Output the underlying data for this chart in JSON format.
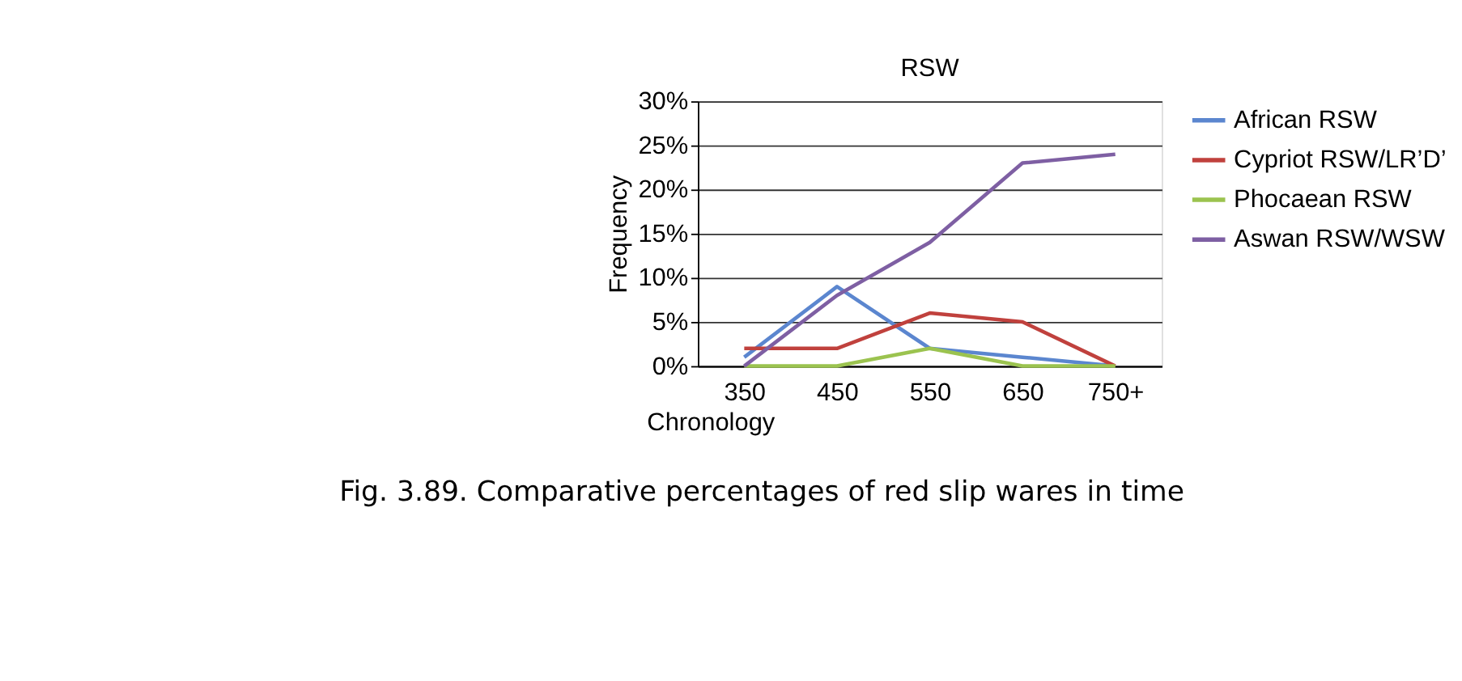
{
  "chart_data": {
    "type": "line",
    "title": "RSW",
    "xlabel": "Chronology",
    "ylabel": "Frequency",
    "categories": [
      "350",
      "450",
      "550",
      "650",
      "750+"
    ],
    "series": [
      {
        "name": "African RSW",
        "color": "#5b86cf",
        "values": [
          1,
          9,
          2,
          1,
          0
        ]
      },
      {
        "name": "Cypriot RSW/LR’D’",
        "color": "#c0413d",
        "values": [
          2,
          2,
          6,
          5,
          0
        ]
      },
      {
        "name": "Phocaean RSW",
        "color": "#9bc34f",
        "values": [
          0,
          0,
          2,
          0,
          0
        ]
      },
      {
        "name": "Aswan RSW/WSW",
        "color": "#7e5fa3",
        "values": [
          0,
          8,
          14,
          23,
          24
        ]
      }
    ],
    "ylim": [
      0,
      30
    ],
    "yticks": [
      {
        "value": 0,
        "label": "0%"
      },
      {
        "value": 5,
        "label": "5%"
      },
      {
        "value": 10,
        "label": "10%"
      },
      {
        "value": 15,
        "label": "15%"
      },
      {
        "value": 20,
        "label": "20%"
      },
      {
        "value": 25,
        "label": "25%"
      },
      {
        "value": 30,
        "label": "30%"
      }
    ],
    "grid": "y",
    "legend": "right",
    "marker": "none",
    "line_style": "solid",
    "annotations": [
      "Fig. 3.89. Comparative percentages of red slip wares in time"
    ]
  }
}
